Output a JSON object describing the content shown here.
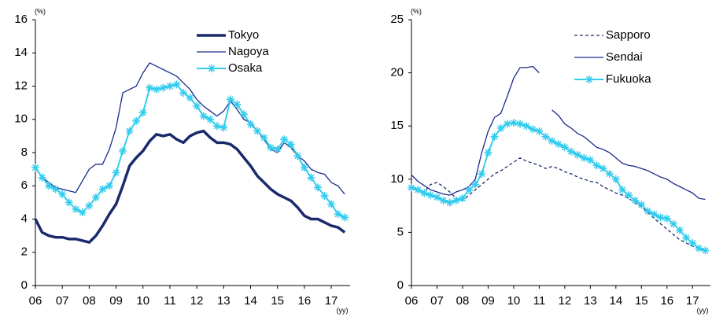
{
  "chart_data": [
    {
      "type": "line",
      "y_unit": "(%)",
      "x_unit": "(yy)",
      "x": [
        6,
        6.25,
        6.5,
        6.75,
        7,
        7.25,
        7.5,
        7.75,
        8,
        8.25,
        8.5,
        8.75,
        9,
        9.25,
        9.5,
        9.75,
        10,
        10.25,
        10.5,
        10.75,
        11,
        11.25,
        11.5,
        11.75,
        12,
        12.25,
        12.5,
        12.75,
        13,
        13.25,
        13.5,
        13.75,
        14,
        14.25,
        14.5,
        14.75,
        15,
        15.25,
        15.5,
        15.75,
        16,
        16.25,
        16.5,
        16.75,
        17,
        17.25,
        17.5
      ],
      "xlim": [
        6,
        17.7
      ],
      "xticks": [
        {
          "value": 6,
          "label": "06"
        },
        {
          "value": 7,
          "label": "07"
        },
        {
          "value": 8,
          "label": "08"
        },
        {
          "value": 9,
          "label": "09"
        },
        10,
        11,
        12,
        13,
        14,
        15,
        16,
        17
      ],
      "ylim": [
        0,
        16
      ],
      "yticks": [
        0,
        2,
        4,
        6,
        8,
        10,
        12,
        14,
        16
      ],
      "legend": "top-right",
      "series": [
        {
          "name": "Tokyo",
          "color": "#1a2a6c",
          "width": 3.5,
          "values": [
            4.0,
            3.2,
            3.0,
            2.9,
            2.9,
            2.8,
            2.8,
            2.7,
            2.6,
            3.0,
            3.6,
            4.3,
            4.9,
            6.0,
            7.2,
            7.7,
            8.1,
            8.7,
            9.1,
            9.0,
            9.1,
            8.8,
            8.6,
            9.0,
            9.2,
            9.3,
            8.9,
            8.6,
            8.6,
            8.5,
            8.2,
            7.7,
            7.2,
            6.6,
            6.2,
            5.8,
            5.5,
            5.3,
            5.1,
            4.7,
            4.2,
            4.0,
            4.0,
            3.8,
            3.6,
            3.5,
            3.2
          ]
        },
        {
          "name": "Nagoya",
          "color": "#1a2a8c",
          "width": 1.3,
          "values": [
            7.1,
            6.5,
            6.2,
            5.9,
            5.8,
            5.7,
            5.6,
            6.3,
            7.0,
            7.3,
            7.3,
            8.2,
            9.5,
            11.6,
            11.8,
            12.0,
            12.8,
            13.4,
            13.2,
            13.0,
            12.8,
            12.6,
            12.2,
            11.8,
            11.2,
            10.8,
            10.5,
            10.2,
            10.5,
            11.1,
            10.6,
            10.0,
            9.8,
            9.3,
            8.8,
            8.2,
            8.0,
            8.6,
            8.3,
            7.8,
            7.5,
            7.0,
            6.8,
            6.7,
            6.2,
            6.0,
            5.5
          ]
        },
        {
          "name": "Osaka",
          "color": "#33ccee",
          "width": 2,
          "marker": "star",
          "values": [
            7.1,
            6.5,
            6.0,
            5.8,
            5.5,
            5.0,
            4.6,
            4.4,
            4.8,
            5.3,
            5.8,
            6.0,
            6.8,
            8.1,
            9.3,
            9.9,
            10.4,
            11.9,
            11.8,
            11.9,
            12.0,
            12.1,
            11.6,
            11.3,
            10.8,
            10.2,
            10.0,
            9.6,
            9.5,
            11.2,
            10.9,
            10.3,
            9.7,
            9.3,
            8.9,
            8.3,
            8.2,
            8.8,
            8.5,
            7.8,
            7.1,
            6.5,
            5.9,
            5.4,
            4.9,
            4.3,
            4.1
          ]
        }
      ]
    },
    {
      "type": "line",
      "y_unit": "(%)",
      "x_unit": "(yy)",
      "x": [
        6,
        6.25,
        6.5,
        6.75,
        7,
        7.25,
        7.5,
        7.75,
        8,
        8.25,
        8.5,
        8.75,
        9,
        9.25,
        9.5,
        9.75,
        10,
        10.25,
        10.5,
        10.75,
        11,
        11.25,
        11.5,
        11.75,
        12,
        12.25,
        12.5,
        12.75,
        13,
        13.25,
        13.5,
        13.75,
        14,
        14.25,
        14.5,
        14.75,
        15,
        15.25,
        15.5,
        15.75,
        16,
        16.25,
        16.5,
        16.75,
        17,
        17.25,
        17.5
      ],
      "xlim": [
        6,
        17.7
      ],
      "xticks": [
        {
          "value": 6,
          "label": "06"
        },
        {
          "value": 7,
          "label": "07"
        },
        {
          "value": 8,
          "label": "08"
        },
        {
          "value": 9,
          "label": "09"
        },
        10,
        11,
        12,
        13,
        14,
        15,
        16,
        17
      ],
      "ylim": [
        0,
        25
      ],
      "yticks": [
        0,
        5,
        10,
        15,
        20,
        25
      ],
      "legend": "top-right",
      "series": [
        {
          "name": "Sapporo",
          "color": "#1a2a6c",
          "width": 1.3,
          "dash": "4,3",
          "values": [
            9.3,
            9.0,
            8.8,
            9.5,
            9.7,
            9.3,
            8.8,
            8.2,
            8.0,
            8.5,
            9.0,
            9.5,
            10.0,
            10.5,
            10.8,
            11.2,
            11.6,
            12.0,
            11.7,
            11.5,
            11.3,
            11.0,
            11.2,
            11.0,
            10.7,
            10.5,
            10.2,
            10.0,
            9.8,
            9.7,
            9.3,
            9.0,
            8.7,
            8.5,
            8.2,
            7.8,
            7.4,
            6.9,
            6.3,
            5.8,
            5.3,
            4.8,
            4.3,
            4.0,
            3.7,
            3.5,
            3.3
          ]
        },
        {
          "name": "Sendai",
          "color": "#1a2a8c",
          "width": 1.3,
          "values": [
            10.4,
            9.8,
            9.4,
            9.0,
            8.8,
            8.6,
            8.5,
            8.8,
            9.0,
            9.3,
            10.0,
            12.5,
            14.5,
            15.8,
            16.2,
            17.8,
            19.5,
            20.5,
            20.5,
            20.6,
            20.0,
            null,
            16.5,
            16.0,
            15.2,
            14.8,
            14.3,
            14.0,
            13.5,
            13.0,
            12.8,
            12.5,
            12.0,
            11.5,
            11.3,
            11.2,
            11.0,
            10.8,
            10.5,
            10.2,
            10.0,
            9.6,
            9.3,
            9.0,
            8.7,
            8.2,
            8.1
          ]
        },
        {
          "name": "Fukuoka",
          "color": "#33ccee",
          "width": 2,
          "marker": "star",
          "values": [
            9.2,
            9.0,
            8.7,
            8.5,
            8.3,
            8.0,
            7.8,
            8.0,
            8.2,
            9.0,
            9.5,
            10.5,
            12.5,
            14.0,
            14.8,
            15.2,
            15.3,
            15.2,
            15.0,
            14.7,
            14.5,
            14.0,
            13.6,
            13.3,
            13.0,
            12.6,
            12.3,
            12.0,
            11.8,
            11.3,
            11.0,
            10.5,
            10.0,
            9.0,
            8.5,
            8.0,
            7.6,
            7.0,
            6.7,
            6.4,
            6.3,
            5.8,
            5.2,
            4.5,
            4.0,
            3.5,
            3.3
          ]
        }
      ]
    }
  ]
}
